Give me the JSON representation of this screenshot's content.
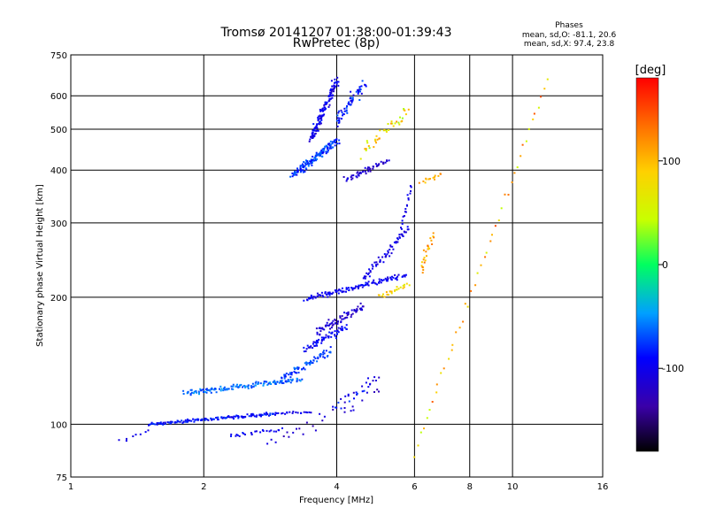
{
  "chart_data": {
    "type": "scatter",
    "title": "Tromsø 20141207 01:38:00-01:39:43",
    "subtitle": "RwPretec (8p)",
    "xlabel": "Frequency [MHz]",
    "ylabel": "Stationary phase Virtual Height [km]",
    "x_scale": "log",
    "y_scale": "log",
    "xlim": [
      1,
      16
    ],
    "ylim": [
      75,
      750
    ],
    "x_ticks": [
      1,
      2,
      4,
      6,
      8,
      10,
      16
    ],
    "x_tick_labels": [
      "1",
      "2",
      "4",
      "6",
      "8",
      "10",
      "16"
    ],
    "y_ticks": [
      75,
      100,
      200,
      300,
      400,
      500,
      600,
      750
    ],
    "y_tick_labels": [
      "75",
      "100",
      "200",
      "300",
      "400",
      "500",
      "600",
      "750"
    ],
    "grid": true,
    "stats": {
      "heading": "Phases",
      "lines": [
        "mean, sd,O: -81.1, 20.6",
        "mean, sd,X:  97.4, 23.8"
      ]
    },
    "colorbar": {
      "label": "[deg]",
      "range": [
        -180,
        180
      ],
      "ticks": [
        100,
        0,
        -100
      ],
      "tick_labels": [
        "100",
        "0",
        "-100"
      ]
    },
    "segments": [
      {
        "f": [
          1.5,
          2.9
        ],
        "h": [
          100,
          106
        ],
        "n": 150,
        "phase": [
          -110,
          -70
        ],
        "jf": 0.02,
        "jh": 0.012
      },
      {
        "f": [
          2.9,
          3.5
        ],
        "h": [
          106,
          107
        ],
        "n": 20,
        "phase": [
          -110,
          -90
        ],
        "jf": 0.01,
        "jh": 0.01
      },
      {
        "f": [
          2.3,
          3.0
        ],
        "h": [
          94,
          97
        ],
        "n": 25,
        "phase": [
          -110,
          -80
        ],
        "jf": 0.02,
        "jh": 0.015
      },
      {
        "f": [
          1.3,
          1.5
        ],
        "h": [
          92,
          96
        ],
        "n": 8,
        "phase": [
          -110,
          -90
        ],
        "jf": 0.02,
        "jh": 0.02
      },
      {
        "f": [
          1.8,
          3.3
        ],
        "h": [
          118,
          128
        ],
        "n": 140,
        "phase": [
          -80,
          -40
        ],
        "jf": 0.025,
        "jh": 0.02
      },
      {
        "f": [
          3.0,
          3.9
        ],
        "h": [
          128,
          150
        ],
        "n": 70,
        "phase": [
          -90,
          -50
        ],
        "jf": 0.025,
        "jh": 0.03
      },
      {
        "f": [
          3.4,
          4.2
        ],
        "h": [
          150,
          170
        ],
        "n": 60,
        "phase": [
          -110,
          -80
        ],
        "jf": 0.02,
        "jh": 0.03
      },
      {
        "f": [
          3.6,
          4.6
        ],
        "h": [
          165,
          190
        ],
        "n": 70,
        "phase": [
          -130,
          -100
        ],
        "jf": 0.025,
        "jh": 0.03
      },
      {
        "f": [
          3.4,
          5.7
        ],
        "h": [
          198,
          225
        ],
        "n": 120,
        "phase": [
          -110,
          -85
        ],
        "jf": 0.02,
        "jh": 0.02
      },
      {
        "f": [
          4.6,
          5.8
        ],
        "h": [
          220,
          290
        ],
        "n": 60,
        "phase": [
          -115,
          -90
        ],
        "jf": 0.015,
        "jh": 0.03
      },
      {
        "f": [
          5.6,
          5.9
        ],
        "h": [
          290,
          370
        ],
        "n": 18,
        "phase": [
          -110,
          -90
        ],
        "jf": 0.01,
        "jh": 0.03
      },
      {
        "f": [
          5.0,
          5.8
        ],
        "h": [
          200,
          215
        ],
        "n": 25,
        "phase": [
          60,
          110
        ],
        "jf": 0.02,
        "jh": 0.02
      },
      {
        "f": [
          6.2,
          6.6
        ],
        "h": [
          230,
          280
        ],
        "n": 25,
        "phase": [
          80,
          140
        ],
        "jf": 0.02,
        "jh": 0.04
      },
      {
        "f": [
          6.2,
          6.9
        ],
        "h": [
          375,
          390
        ],
        "n": 15,
        "phase": [
          90,
          130
        ],
        "jf": 0.02,
        "jh": 0.02
      },
      {
        "f": [
          3.2,
          4.0
        ],
        "h": [
          390,
          470
        ],
        "n": 150,
        "phase": [
          -95,
          -55
        ],
        "jf": 0.03,
        "jh": 0.03
      },
      {
        "f": [
          3.5,
          4.0
        ],
        "h": [
          470,
          650
        ],
        "n": 120,
        "phase": [
          -120,
          -80
        ],
        "jf": 0.025,
        "jh": 0.03
      },
      {
        "f": [
          4.0,
          4.6
        ],
        "h": [
          520,
          640
        ],
        "n": 60,
        "phase": [
          -110,
          -60
        ],
        "jf": 0.03,
        "jh": 0.04
      },
      {
        "f": [
          4.2,
          5.2
        ],
        "h": [
          380,
          420
        ],
        "n": 50,
        "phase": [
          -130,
          -100
        ],
        "jf": 0.025,
        "jh": 0.02
      },
      {
        "f": [
          4.6,
          5.8
        ],
        "h": [
          440,
          560
        ],
        "n": 40,
        "phase": [
          30,
          120
        ],
        "jf": 0.03,
        "jh": 0.05
      },
      {
        "f": [
          2.8,
          5.0
        ],
        "h": [
          90,
          120
        ],
        "n": 30,
        "phase": [
          -130,
          -100
        ],
        "jf": 0.04,
        "jh": 0.05
      },
      {
        "f": [
          4.0,
          5.0
        ],
        "h": [
          110,
          130
        ],
        "n": 25,
        "phase": [
          -130,
          -60
        ],
        "jf": 0.03,
        "jh": 0.04
      },
      {
        "f": [
          6.0,
          12.0
        ],
        "h": [
          85,
          650
        ],
        "n": 45,
        "phase": [
          40,
          150
        ],
        "jf": 0.01,
        "jh": 0.05
      }
    ]
  }
}
